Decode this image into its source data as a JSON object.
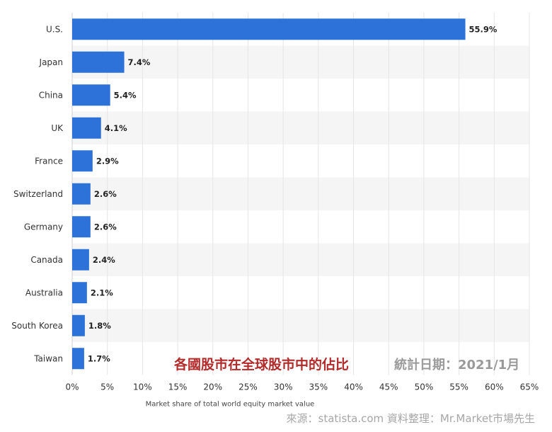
{
  "chart_data": {
    "type": "bar",
    "orientation": "horizontal",
    "categories": [
      "U.S.",
      "Japan",
      "China",
      "UK",
      "France",
      "Switzerland",
      "Germany",
      "Canada",
      "Australia",
      "South Korea",
      "Taiwan"
    ],
    "values": [
      55.9,
      7.4,
      5.4,
      4.1,
      2.9,
      2.6,
      2.6,
      2.4,
      2.1,
      1.8,
      1.7
    ],
    "value_labels": [
      "55.9%",
      "7.4%",
      "5.4%",
      "4.1%",
      "2.9%",
      "2.6%",
      "2.6%",
      "2.4%",
      "2.1%",
      "1.8%",
      "1.7%"
    ],
    "xlabel": "Market share of total world equity market value",
    "ylabel": "",
    "xlim": [
      0,
      65
    ],
    "x_ticks": [
      "0%",
      "5%",
      "10%",
      "15%",
      "20%",
      "25%",
      "30%",
      "35%",
      "40%",
      "45%",
      "50%",
      "55%",
      "60%",
      "65%"
    ],
    "bar_color": "#2d72d9",
    "stripe_color": "#f5f5f5",
    "grid": true
  },
  "annotations": {
    "caption": "各國股市在全球股市中的佔比",
    "date": "統計日期：2021/1月",
    "source": "來源：statista.com  資料整理：Mr.Market市場先生"
  },
  "colors": {
    "caption": "#b22a2a",
    "date": "#9a9a9a",
    "source": "#a6a6a6"
  }
}
